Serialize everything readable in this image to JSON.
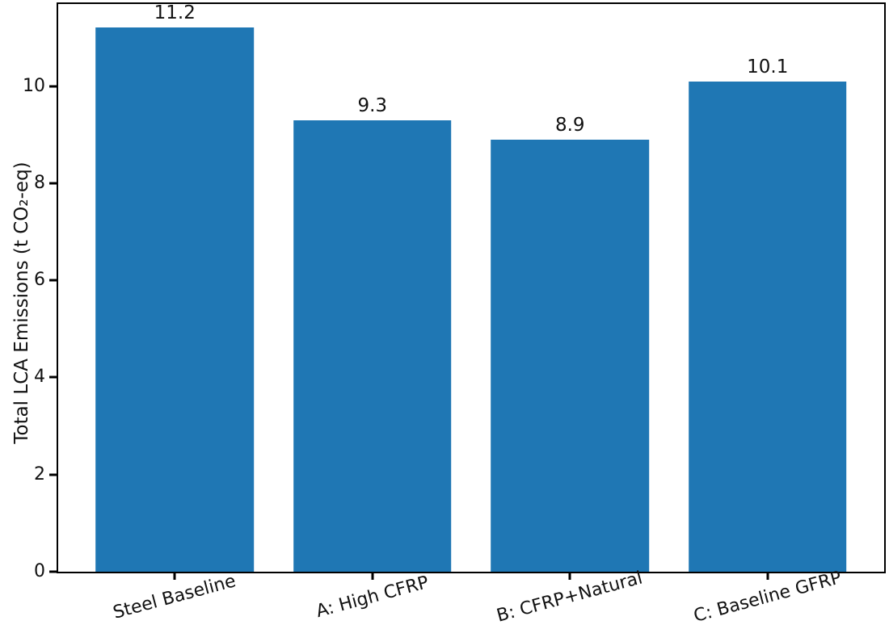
{
  "figure": {
    "background_color": "#ffffff"
  },
  "chart_data": {
    "type": "bar",
    "title": "",
    "categories": [
      "Steel Baseline",
      "A: High CFRP",
      "B: CFRP+Natural",
      "C: Baseline GFRP"
    ],
    "values": [
      11.2,
      9.3,
      8.9,
      10.1
    ],
    "value_labels": [
      "11.2",
      "9.3",
      "8.9",
      "10.1"
    ],
    "xlabel": "",
    "ylabel": "Total LCA Emissions (t CO₂-eq)",
    "ylim": [
      0,
      11.69
    ],
    "xlim": [
      -0.59,
      3.59
    ],
    "yticks": [
      0,
      2,
      4,
      6,
      8,
      10
    ],
    "bar_width": 0.8,
    "x_tick_rotation_deg": 15,
    "bar_color": "#1f77b4",
    "axis_color": "#000000",
    "text_color": "#111111",
    "grid": false,
    "legend": null
  }
}
